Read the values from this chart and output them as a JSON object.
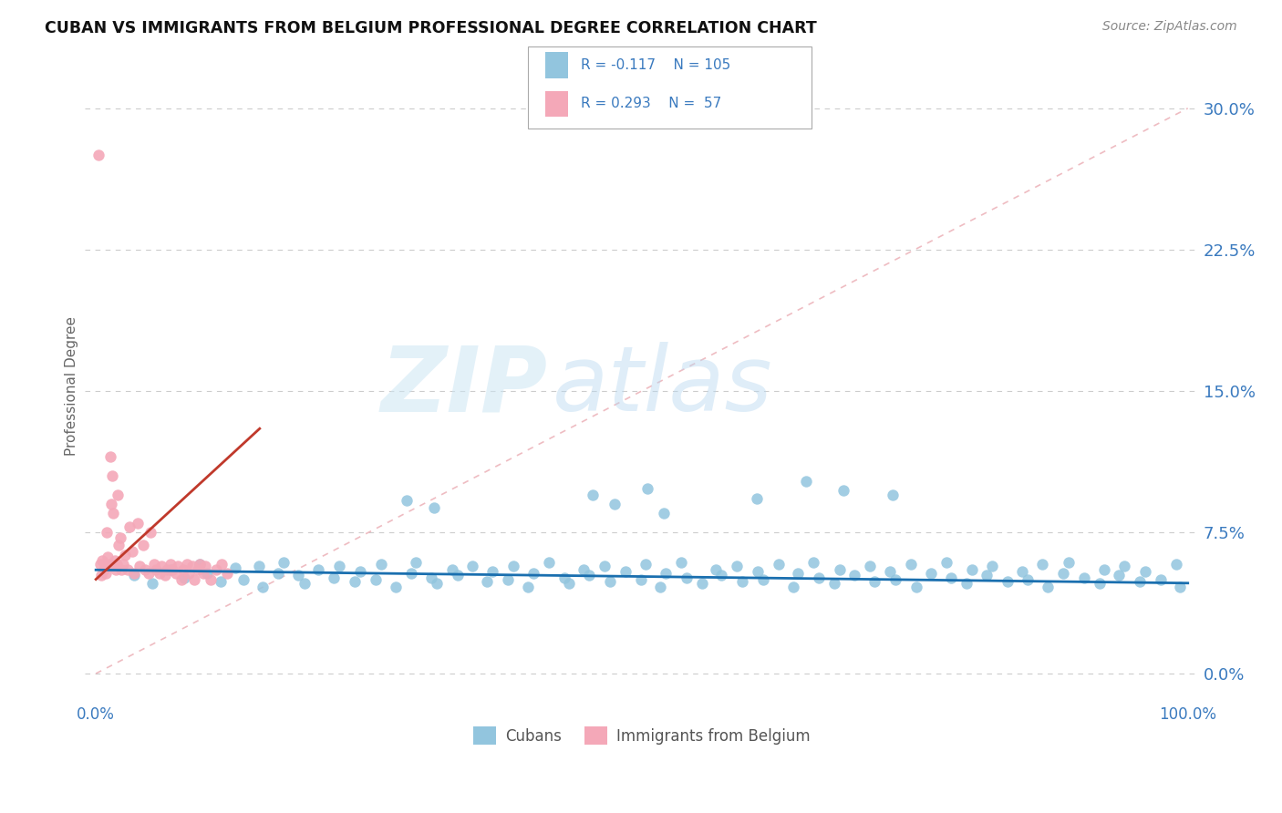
{
  "title": "CUBAN VS IMMIGRANTS FROM BELGIUM PROFESSIONAL DEGREE CORRELATION CHART",
  "source": "Source: ZipAtlas.com",
  "ylabel": "Professional Degree",
  "ytick_labels": [
    "0.0%",
    "7.5%",
    "15.0%",
    "22.5%",
    "30.0%"
  ],
  "ytick_values": [
    0.0,
    7.5,
    15.0,
    22.5,
    30.0
  ],
  "xlim": [
    -1.0,
    101.0
  ],
  "ylim": [
    -1.5,
    32.0
  ],
  "legend_r1_val": "-0.117",
  "legend_n1_val": "105",
  "legend_r2_val": "0.293",
  "legend_n2_val": " 57",
  "legend_label1": "Cubans",
  "legend_label2": "Immigrants from Belgium",
  "color_blue": "#92c5de",
  "color_pink": "#f4a8b8",
  "color_line_blue": "#1a6faf",
  "color_line_pink": "#c0392b",
  "color_diag": "#e8a0a8",
  "watermark_zip": "ZIP",
  "watermark_atlas": "atlas",
  "grid_color": "#cccccc",
  "legend_text_color": "#3a7abf",
  "ytick_color": "#3a7abf",
  "xtick_color": "#3a7abf",
  "blue_x": [
    3.5,
    5.2,
    6.8,
    8.1,
    9.5,
    10.2,
    11.4,
    12.8,
    13.5,
    14.9,
    15.3,
    16.7,
    17.2,
    18.5,
    19.1,
    20.4,
    21.8,
    22.3,
    23.7,
    24.2,
    25.6,
    26.1,
    27.5,
    28.9,
    29.3,
    30.7,
    31.2,
    32.6,
    33.1,
    34.5,
    35.8,
    36.3,
    37.7,
    38.2,
    39.6,
    40.1,
    41.5,
    42.9,
    43.3,
    44.7,
    45.2,
    46.6,
    47.1,
    48.5,
    49.9,
    50.3,
    51.7,
    52.2,
    53.6,
    54.1,
    55.5,
    56.8,
    57.3,
    58.7,
    59.2,
    60.6,
    61.1,
    62.5,
    63.9,
    64.3,
    65.7,
    66.2,
    67.6,
    68.1,
    69.5,
    70.9,
    71.3,
    72.7,
    73.2,
    74.6,
    75.1,
    76.5,
    77.9,
    78.3,
    79.7,
    80.2,
    81.6,
    82.1,
    83.5,
    84.8,
    85.3,
    86.7,
    87.2,
    88.6,
    89.1,
    90.5,
    91.9,
    92.3,
    93.7,
    94.2,
    95.6,
    96.1,
    97.5,
    98.9,
    99.3,
    28.5,
    31.0,
    45.5,
    47.5,
    50.5,
    52.0,
    60.5,
    65.0,
    68.5,
    73.0
  ],
  "blue_y": [
    5.2,
    4.8,
    5.5,
    5.1,
    5.8,
    5.3,
    4.9,
    5.6,
    5.0,
    5.7,
    4.6,
    5.3,
    5.9,
    5.2,
    4.8,
    5.5,
    5.1,
    5.7,
    4.9,
    5.4,
    5.0,
    5.8,
    4.6,
    5.3,
    5.9,
    5.1,
    4.8,
    5.5,
    5.2,
    5.7,
    4.9,
    5.4,
    5.0,
    5.7,
    4.6,
    5.3,
    5.9,
    5.1,
    4.8,
    5.5,
    5.2,
    5.7,
    4.9,
    5.4,
    5.0,
    5.8,
    4.6,
    5.3,
    5.9,
    5.1,
    4.8,
    5.5,
    5.2,
    5.7,
    4.9,
    5.4,
    5.0,
    5.8,
    4.6,
    5.3,
    5.9,
    5.1,
    4.8,
    5.5,
    5.2,
    5.7,
    4.9,
    5.4,
    5.0,
    5.8,
    4.6,
    5.3,
    5.9,
    5.1,
    4.8,
    5.5,
    5.2,
    5.7,
    4.9,
    5.4,
    5.0,
    5.8,
    4.6,
    5.3,
    5.9,
    5.1,
    4.8,
    5.5,
    5.2,
    5.7,
    4.9,
    5.4,
    5.0,
    5.8,
    4.6,
    9.2,
    8.8,
    9.5,
    9.0,
    9.8,
    8.5,
    9.3,
    10.2,
    9.7,
    9.5
  ],
  "pink_x": [
    0.2,
    0.4,
    0.5,
    0.6,
    0.7,
    0.8,
    0.9,
    1.0,
    1.1,
    1.2,
    1.3,
    1.4,
    1.5,
    1.6,
    1.7,
    1.8,
    1.9,
    2.0,
    2.1,
    2.2,
    2.3,
    2.5,
    2.7,
    2.9,
    3.1,
    3.3,
    3.5,
    3.8,
    4.0,
    4.3,
    4.5,
    4.8,
    5.0,
    5.3,
    5.5,
    5.8,
    6.0,
    6.3,
    6.5,
    6.8,
    7.0,
    7.3,
    7.5,
    7.8,
    8.0,
    8.3,
    8.5,
    8.8,
    9.0,
    9.3,
    9.5,
    9.8,
    10.0,
    10.5,
    11.0,
    11.5,
    12.0
  ],
  "pink_y": [
    27.5,
    5.8,
    5.2,
    6.0,
    5.5,
    5.8,
    5.3,
    7.5,
    6.2,
    5.8,
    11.5,
    9.0,
    10.5,
    8.5,
    6.0,
    5.5,
    5.8,
    9.5,
    6.8,
    7.2,
    5.5,
    5.8,
    6.3,
    5.5,
    7.8,
    6.5,
    5.3,
    8.0,
    5.7,
    6.8,
    5.5,
    5.3,
    7.5,
    5.8,
    5.5,
    5.3,
    5.7,
    5.2,
    5.5,
    5.8,
    5.5,
    5.3,
    5.7,
    5.0,
    5.5,
    5.8,
    5.3,
    5.7,
    5.0,
    5.5,
    5.8,
    5.3,
    5.7,
    5.0,
    5.5,
    5.8,
    5.3
  ],
  "blue_line_x": [
    0.0,
    100.0
  ],
  "blue_line_y": [
    5.5,
    4.8
  ],
  "pink_line_x": [
    0.0,
    15.0
  ],
  "pink_line_y": [
    5.0,
    13.0
  ],
  "diag_line_x": [
    0.0,
    100.0
  ],
  "diag_line_y": [
    0.0,
    30.0
  ]
}
